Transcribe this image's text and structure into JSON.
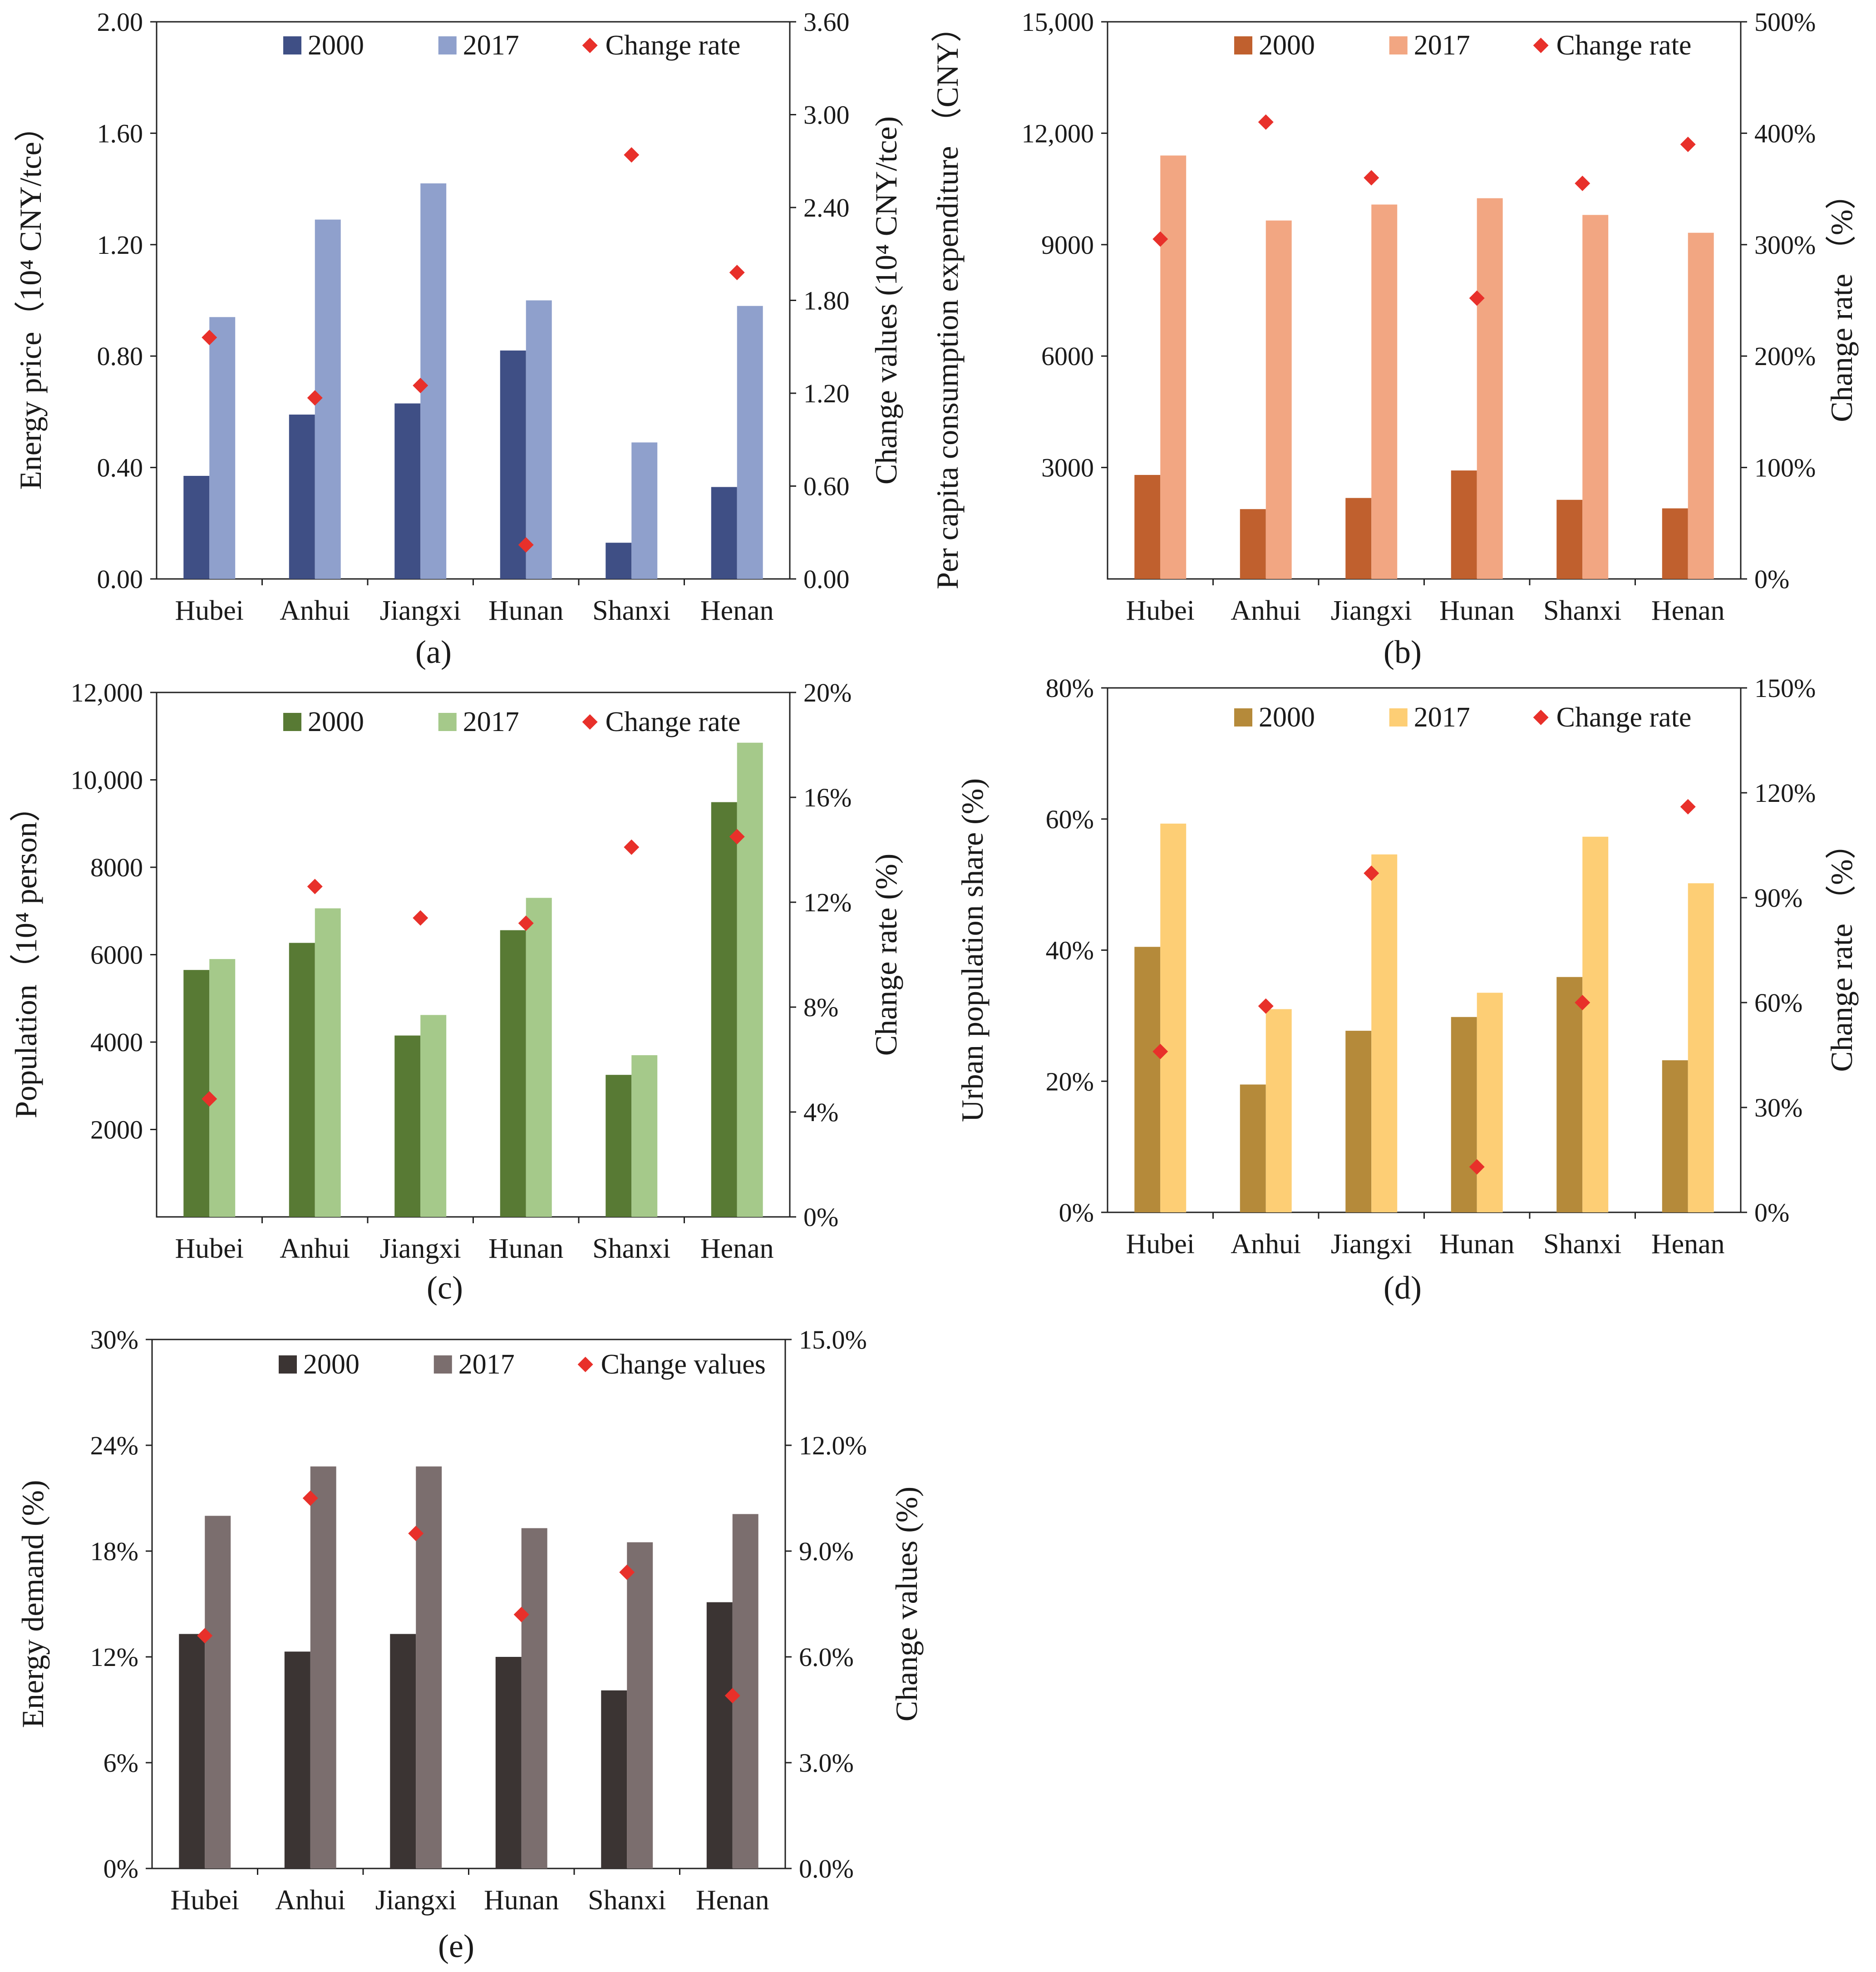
{
  "figure": {
    "panel_labels": [
      "(a)",
      "(b)",
      "(c)",
      "(d)",
      "(e)"
    ]
  },
  "chart_data": [
    {
      "id": "a",
      "type": "bar",
      "categories": [
        "Hubei",
        "Anhui",
        "Jiangxi",
        "Hunan",
        "Shanxi",
        "Henan"
      ],
      "series": [
        {
          "name": "2000",
          "axis": "left",
          "color": "#3f4f85",
          "values": [
            0.37,
            0.59,
            0.63,
            0.82,
            0.13,
            0.33
          ]
        },
        {
          "name": "2017",
          "axis": "left",
          "color": "#8fa0cc",
          "values": [
            0.94,
            1.29,
            1.42,
            1.0,
            0.49,
            0.98
          ]
        },
        {
          "name": "Change rate",
          "axis": "right",
          "kind": "diamond",
          "color": "#e8302a",
          "values": [
            1.56,
            1.17,
            1.25,
            0.22,
            2.74,
            1.98
          ]
        }
      ],
      "ylabel": "Energy price（10⁴ CNY/tce）",
      "y2label": "Change values (10⁴ CNY/tce)",
      "ylim": [
        0,
        2.0
      ],
      "y2lim": [
        0,
        3.6
      ],
      "yticks": [
        "0.00",
        "0.40",
        "0.80",
        "1.20",
        "1.60",
        "2.00"
      ],
      "y2ticks": [
        "0.00",
        "0.60",
        "1.20",
        "1.80",
        "2.40",
        "3.00",
        "3.60"
      ],
      "legend_location": "top-center",
      "panel_label": "(a)"
    },
    {
      "id": "b",
      "type": "bar",
      "categories": [
        "Hubei",
        "Anhui",
        "Jiangxi",
        "Hunan",
        "Shanxi",
        "Henan"
      ],
      "series": [
        {
          "name": "2000",
          "axis": "left",
          "color": "#c0602e",
          "values": [
            2800,
            1880,
            2180,
            2920,
            2130,
            1900
          ]
        },
        {
          "name": "2017",
          "axis": "left",
          "color": "#f2a682",
          "values": [
            11400,
            9650,
            10080,
            10250,
            9800,
            9320
          ]
        },
        {
          "name": "Change rate",
          "axis": "right",
          "kind": "diamond",
          "color": "#e8302a",
          "values": [
            305,
            410,
            360,
            252,
            355,
            390
          ]
        }
      ],
      "ylabel": "Per capita consumption expenditure （CNY）",
      "y2label": "Change rate （%）",
      "ylim": [
        0,
        15000
      ],
      "y2lim": [
        0,
        500
      ],
      "yticks": [
        "3000",
        "6000",
        "9000",
        "12,000",
        "15,000"
      ],
      "y2ticks": [
        "0%",
        "100%",
        "200%",
        "300%",
        "400%",
        "500%"
      ],
      "legend_location": "top-center",
      "panel_label": "(b)"
    },
    {
      "id": "c",
      "type": "bar",
      "categories": [
        "Hubei",
        "Anhui",
        "Jiangxi",
        "Hunan",
        "Shanxi",
        "Henan"
      ],
      "series": [
        {
          "name": "2000",
          "axis": "left",
          "color": "#587a34",
          "values": [
            5650,
            6270,
            4150,
            6560,
            3250,
            9490
          ]
        },
        {
          "name": "2017",
          "axis": "left",
          "color": "#a5c98a",
          "values": [
            5900,
            7060,
            4620,
            7300,
            3700,
            10850
          ]
        },
        {
          "name": "Change rate",
          "axis": "right",
          "kind": "diamond",
          "color": "#e8302a",
          "values": [
            4.5,
            12.6,
            11.4,
            11.2,
            14.1,
            14.5
          ]
        }
      ],
      "ylabel": "Population（10⁴ person）",
      "y2label": "Change rate (%)",
      "ylim": [
        0,
        12000
      ],
      "y2lim": [
        0,
        20
      ],
      "yticks": [
        "2000",
        "4000",
        "6000",
        "8000",
        "10,000",
        "12,000"
      ],
      "y2ticks": [
        "0%",
        "4%",
        "8%",
        "12%",
        "16%",
        "20%"
      ],
      "legend_location": "top-center",
      "panel_label": "(c)"
    },
    {
      "id": "d",
      "type": "bar",
      "categories": [
        "Hubei",
        "Anhui",
        "Jiangxi",
        "Hunan",
        "Shanxi",
        "Henan"
      ],
      "series": [
        {
          "name": "2000",
          "axis": "left",
          "color": "#b58a3a",
          "values": [
            40.5,
            19.5,
            27.7,
            29.8,
            35.9,
            23.2
          ]
        },
        {
          "name": "2017",
          "axis": "left",
          "color": "#fdce75",
          "values": [
            59.3,
            31.0,
            54.6,
            33.5,
            57.3,
            50.2
          ]
        },
        {
          "name": "Change rate",
          "axis": "right",
          "kind": "diamond",
          "color": "#e8302a",
          "values": [
            46,
            59,
            97,
            13,
            60,
            116
          ]
        }
      ],
      "ylabel": "Urban population share (%)",
      "y2label": "Change rate （%）",
      "ylim": [
        0,
        80
      ],
      "y2lim": [
        0,
        150
      ],
      "yticks": [
        "0%",
        "20%",
        "40%",
        "60%",
        "80%"
      ],
      "y2ticks": [
        "0%",
        "30%",
        "60%",
        "90%",
        "120%",
        "150%"
      ],
      "legend_location": "top-center",
      "panel_label": "(d)"
    },
    {
      "id": "e",
      "type": "bar",
      "categories": [
        "Hubei",
        "Anhui",
        "Jiangxi",
        "Hunan",
        "Shanxi",
        "Henan"
      ],
      "series": [
        {
          "name": "2000",
          "axis": "left",
          "color": "#3b3433",
          "values": [
            13.3,
            12.3,
            13.3,
            12.0,
            10.1,
            15.1
          ]
        },
        {
          "name": "2017",
          "axis": "left",
          "color": "#7b6e6e",
          "values": [
            20.0,
            22.8,
            22.8,
            19.3,
            18.5,
            20.1
          ]
        },
        {
          "name": "Change values",
          "axis": "right",
          "kind": "diamond",
          "color": "#e8302a",
          "values": [
            6.6,
            10.5,
            9.5,
            7.2,
            8.4,
            4.9
          ]
        }
      ],
      "ylabel": "Energy demand (%)",
      "y2label": "Change values (%)",
      "ylim": [
        0,
        30
      ],
      "y2lim": [
        0,
        15
      ],
      "yticks": [
        "0%",
        "6%",
        "12%",
        "18%",
        "24%",
        "30%"
      ],
      "y2ticks": [
        "0.0%",
        "3.0%",
        "6.0%",
        "9.0%",
        "12.0%",
        "15.0%"
      ],
      "legend_location": "top-center",
      "panel_label": "(e)"
    }
  ]
}
